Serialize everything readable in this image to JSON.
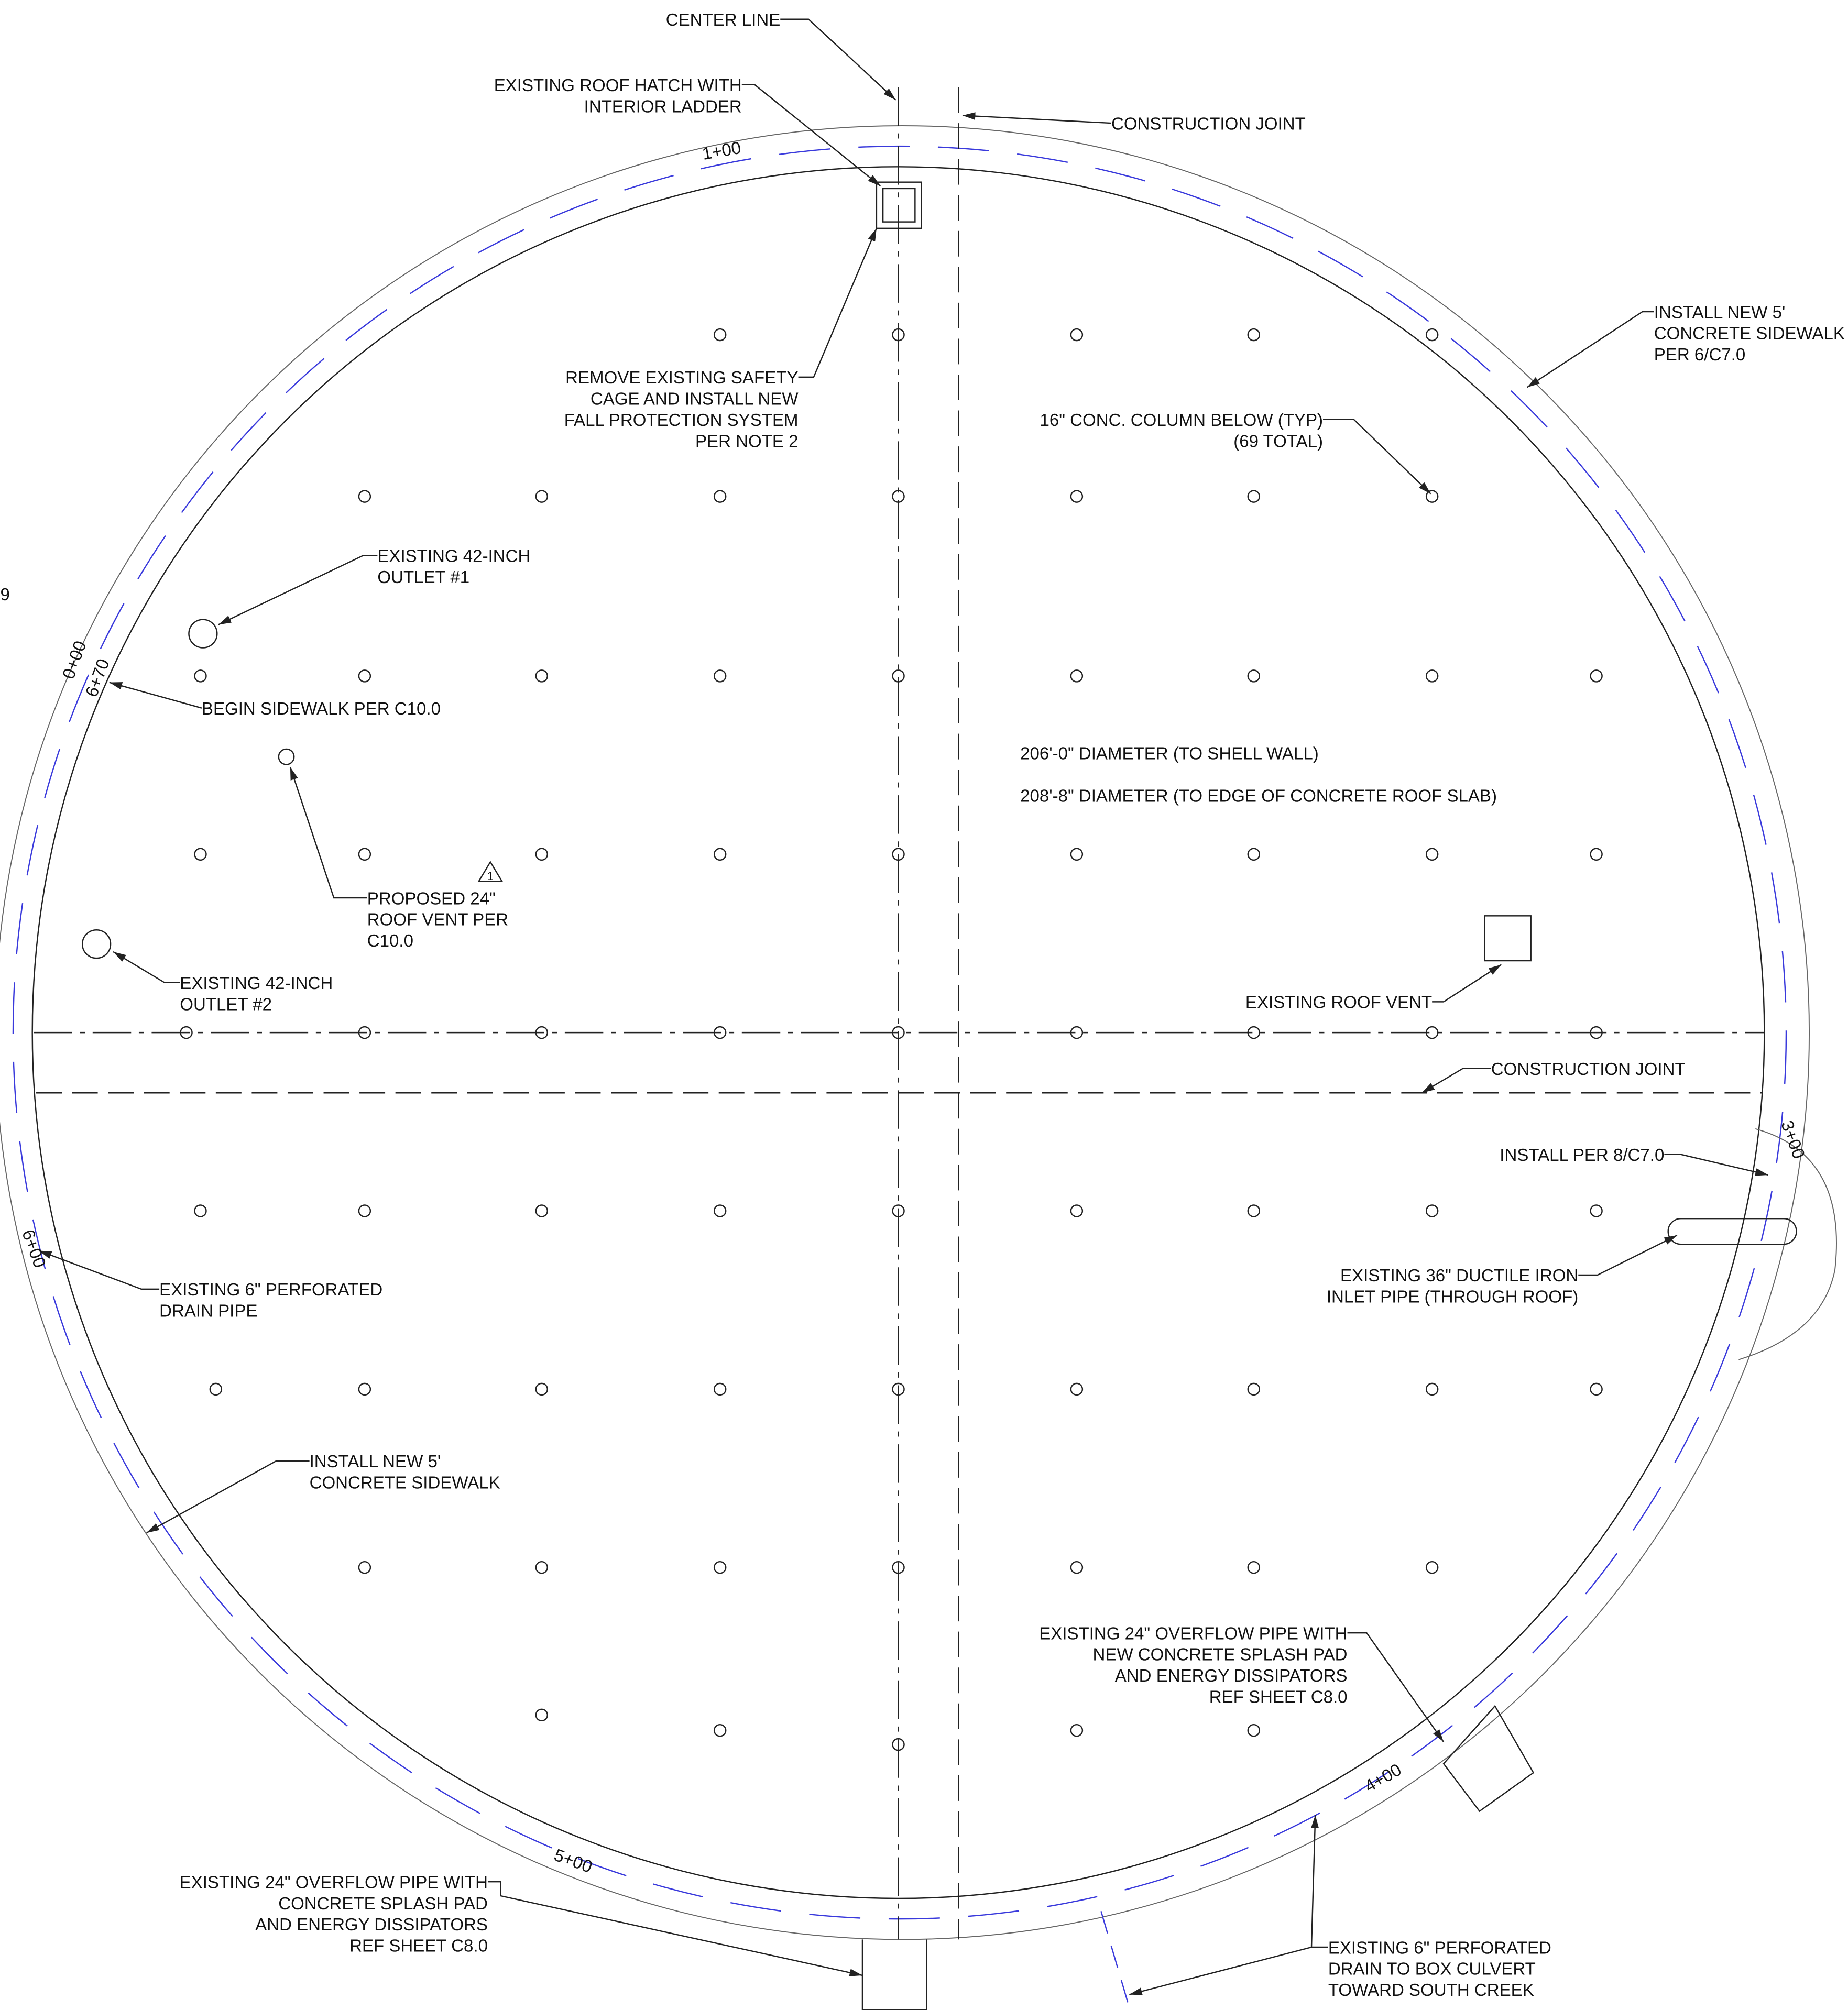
{
  "callouts": [
    {
      "lines": [
        "CENTER LINE"
      ]
    },
    {
      "lines": [
        "EXISTING ROOF HATCH WITH",
        "INTERIOR LADDER"
      ]
    },
    {
      "lines": [
        "CONSTRUCTION JOINT"
      ]
    },
    {
      "lines": [
        "INSTALL NEW 5'",
        "CONCRETE SIDEWALK",
        "PER 6/C7.0"
      ]
    },
    {
      "lines": [
        "REMOVE EXISTING SAFETY",
        "CAGE AND INSTALL NEW",
        "FALL PROTECTION SYSTEM",
        "PER NOTE 2"
      ]
    },
    {
      "lines": [
        "16\" CONC. COLUMN BELOW (TYP)",
        "(69 TOTAL)"
      ]
    },
    {
      "lines": [
        "EXISTING 42-INCH",
        "OUTLET #1"
      ]
    },
    {
      "lines": [
        "BEGIN SIDEWALK PER C10.0"
      ]
    },
    {
      "lines": [
        "206'-0\" DIAMETER (TO SHELL WALL)"
      ]
    },
    {
      "lines": [
        "208'-8\" DIAMETER (TO EDGE OF CONCRETE ROOF SLAB)"
      ]
    },
    {
      "lines": [
        "PROPOSED 24\"",
        "ROOF VENT PER",
        "C10.0"
      ]
    },
    {
      "lines": [
        "EXISTING 42-INCH",
        "OUTLET #2"
      ]
    },
    {
      "lines": [
        "EXISTING ROOF VENT"
      ]
    },
    {
      "lines": [
        "CONSTRUCTION JOINT"
      ]
    },
    {
      "lines": [
        "INSTALL PER 8/C7.0"
      ]
    },
    {
      "lines": [
        "EXISTING 36\" DUCTILE IRON",
        "INLET PIPE (THROUGH ROOF)"
      ]
    },
    {
      "lines": [
        "EXISTING 6\" PERFORATED",
        "DRAIN PIPE"
      ]
    },
    {
      "lines": [
        "INSTALL NEW 5'",
        "CONCRETE SIDEWALK"
      ]
    },
    {
      "lines": [
        "EXISTING 24\" OVERFLOW PIPE WITH",
        "NEW CONCRETE SPLASH PAD",
        "AND ENERGY DISSIPATORS",
        "REF SHEET C8.0"
      ]
    },
    {
      "lines": [
        "EXISTING 24\" OVERFLOW PIPE WITH",
        "CONCRETE SPLASH PAD",
        "AND ENERGY DISSIPATORS",
        "REF SHEET C8.0"
      ]
    },
    {
      "lines": [
        "EXISTING 6\" PERFORATED",
        "DRAIN TO BOX CULVERT",
        "TOWARD SOUTH CREEK"
      ]
    }
  ],
  "stations": [
    "1+00",
    "0+00",
    "6+70",
    "3+00",
    "6+00",
    "4+00",
    "5+00"
  ],
  "revision_mark": "1",
  "edge_text": "9"
}
